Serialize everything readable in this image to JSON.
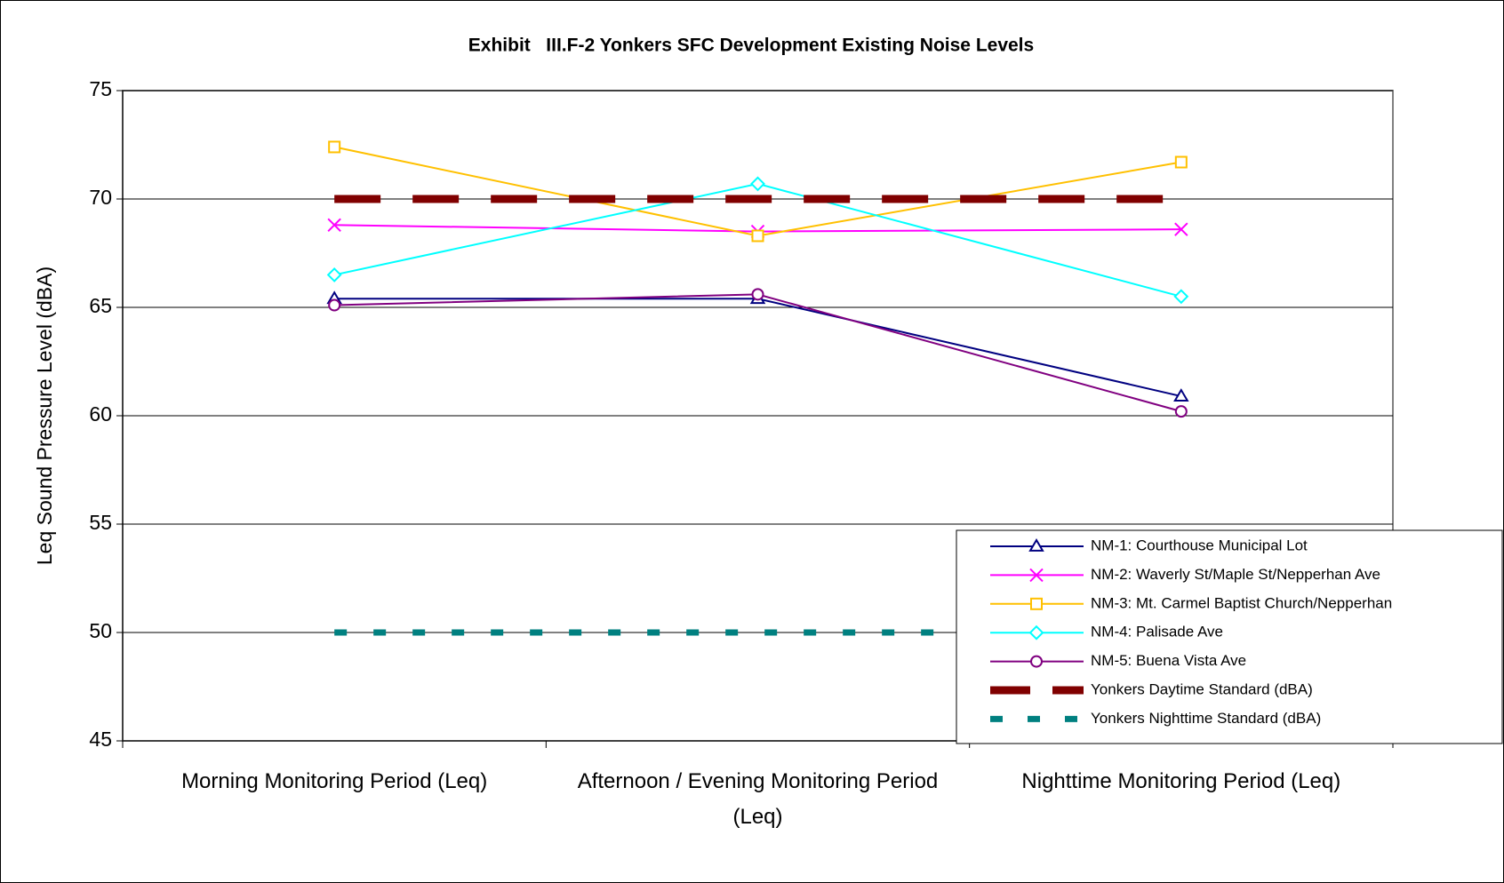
{
  "chart_data": {
    "type": "line",
    "title": "Exhibit   III.F-2 Yonkers SFC Development Existing Noise Levels",
    "y_label": "Leq Sound Pressure Level (dBA)",
    "categories": [
      "Morning Monitoring Period (Leq)",
      "Afternoon / Evening Monitoring Period (Leq)",
      "Nighttime Monitoring Period (Leq)"
    ],
    "ylim": [
      45,
      75
    ],
    "yticks": [
      45,
      50,
      55,
      60,
      65,
      70,
      75
    ],
    "grid": true,
    "legend": "lower-right",
    "series": [
      {
        "name": "NM-1: Courthouse Municipal Lot",
        "color": "#000080",
        "marker": "triangle",
        "line_style": "solid",
        "values": [
          65.4,
          65.4,
          60.9
        ]
      },
      {
        "name": "NM-2: Waverly St/Maple St/Nepperhan Ave",
        "color": "#ff00ff",
        "marker": "x",
        "line_style": "solid",
        "values": [
          68.8,
          68.5,
          68.6
        ]
      },
      {
        "name": "NM-3: Mt. Carmel Baptist Church/Nepperhan",
        "color": "#ffc000",
        "marker": "square",
        "line_style": "solid",
        "values": [
          72.4,
          68.3,
          71.7
        ]
      },
      {
        "name": "NM-4: Palisade Ave",
        "color": "#00ffff",
        "marker": "diamond",
        "line_style": "solid",
        "values": [
          66.5,
          70.7,
          65.5
        ]
      },
      {
        "name": "NM-5: Buena Vista Ave",
        "color": "#800080",
        "marker": "circle",
        "line_style": "solid",
        "values": [
          65.1,
          65.6,
          60.2
        ]
      },
      {
        "name": "Yonkers Daytime Standard (dBA)",
        "color": "#800000",
        "marker": "none",
        "line_style": "long-dash",
        "values": [
          70,
          70,
          70
        ]
      },
      {
        "name": "Yonkers Nighttime Standard (dBA)",
        "color": "#008080",
        "marker": "none",
        "line_style": "short-dash",
        "values": [
          50,
          50,
          50
        ]
      }
    ]
  }
}
